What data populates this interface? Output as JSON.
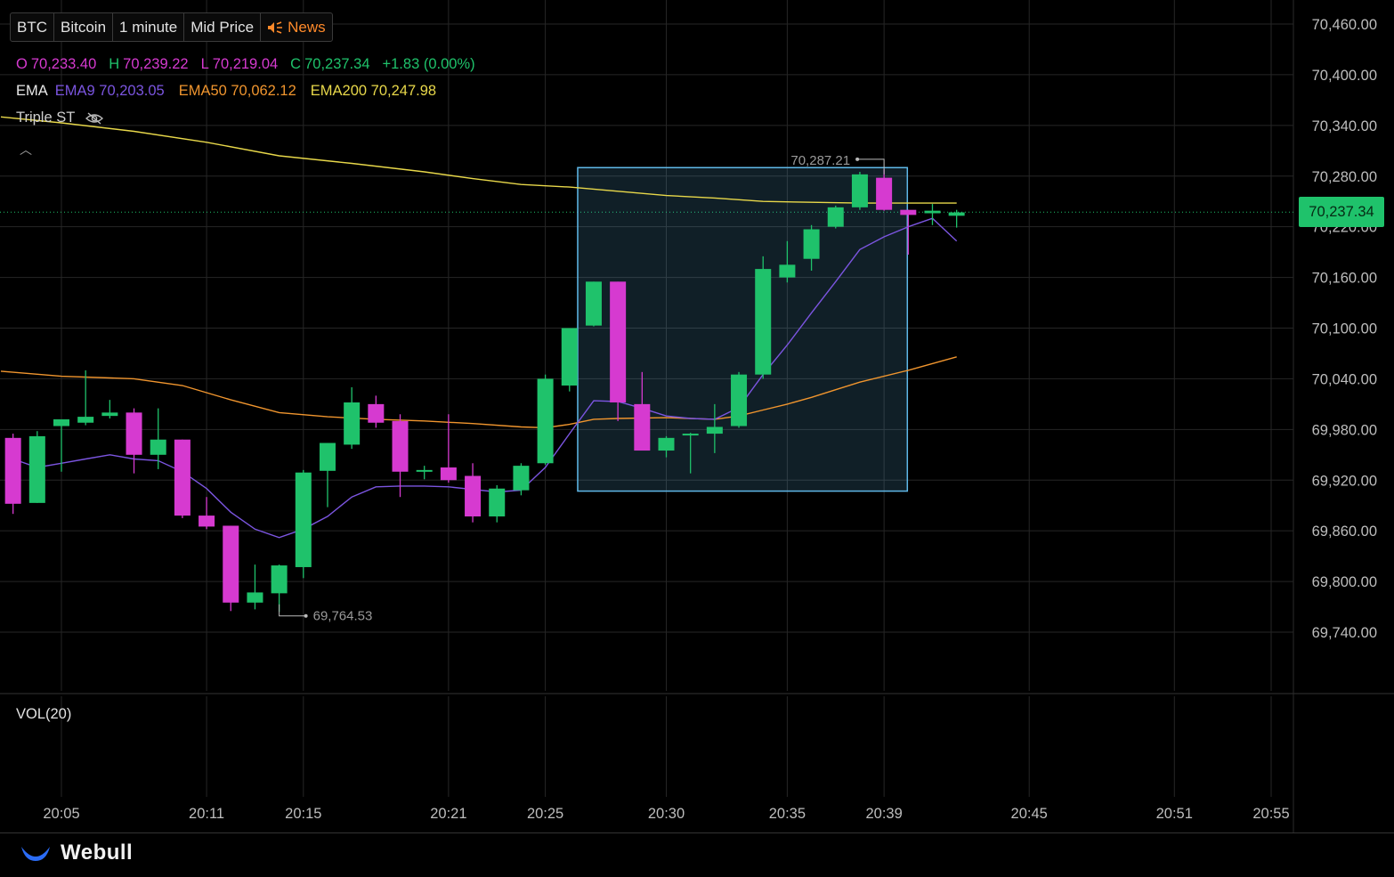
{
  "toolbar": {
    "symbol": "BTC",
    "name": "Bitcoin",
    "interval": "1 minute",
    "price_type": "Mid Price",
    "news": "News"
  },
  "ohlc": {
    "o_label": "O",
    "o_value": "70,233.40",
    "h_label": "H",
    "h_value": "70,239.22",
    "l_label": "L",
    "l_value": "70,219.04",
    "c_label": "C",
    "c_value": "70,237.34",
    "change": "+1.83 (0.00%)"
  },
  "ema": {
    "label": "EMA",
    "ema9": "EMA9 70,203.05",
    "ema50": "EMA50 70,062.12",
    "ema200": "EMA200 70,247.98"
  },
  "indicator": {
    "label": "Triple ST"
  },
  "volume": {
    "label": "VOL(20)"
  },
  "brand": {
    "name": "Webull"
  },
  "colors": {
    "up": "#1fc26b",
    "down": "#d63ad0",
    "ema9": "#7b55e0",
    "ema50": "#f0952e",
    "ema200": "#e8d84a",
    "box": "#5fb8e8",
    "grid": "#262626",
    "text": "#bdbdbd"
  },
  "chart_data": {
    "type": "candlestick",
    "y_ticks": [
      "70,460.00",
      "70,400.00",
      "70,340.00",
      "70,280.00",
      "70,220.00",
      "70,160.00",
      "70,100.00",
      "70,040.00",
      "69,980.00",
      "69,920.00",
      "69,860.00",
      "69,800.00",
      "69,740.00"
    ],
    "ylim": [
      69690,
      70490
    ],
    "x_ticks": [
      "20:05",
      "20:11",
      "20:15",
      "20:21",
      "20:25",
      "20:30",
      "20:35",
      "20:39",
      "20:45",
      "20:51",
      "20:55"
    ],
    "x_tick_minutes": [
      5,
      11,
      15,
      21,
      25,
      30,
      35,
      39,
      45,
      51,
      55
    ],
    "xlim_minutes": [
      2.5,
      58
    ],
    "last_price": "70,237.34",
    "candles": [
      {
        "t": 3.0,
        "o": 69970,
        "h": 69975,
        "l": 69880,
        "c": 69892
      },
      {
        "t": 4.0,
        "o": 69893,
        "h": 69978,
        "l": 69893,
        "c": 69972
      },
      {
        "t": 5.0,
        "o": 69984,
        "h": 69990,
        "l": 69930,
        "c": 69992
      },
      {
        "t": 6.0,
        "o": 69988,
        "h": 70050,
        "l": 69985,
        "c": 69995
      },
      {
        "t": 7.0,
        "o": 69996,
        "h": 70015,
        "l": 69993,
        "c": 70000
      },
      {
        "t": 8.0,
        "o": 70000,
        "h": 70005,
        "l": 69928,
        "c": 69950
      },
      {
        "t": 9.0,
        "o": 69950,
        "h": 70005,
        "l": 69933,
        "c": 69968
      },
      {
        "t": 10.0,
        "o": 69968,
        "h": 69968,
        "l": 69875,
        "c": 69878
      },
      {
        "t": 11.0,
        "o": 69878,
        "h": 69900,
        "l": 69862,
        "c": 69865
      },
      {
        "t": 12.0,
        "o": 69866,
        "h": 69866,
        "l": 69765,
        "c": 69775
      },
      {
        "t": 13.0,
        "o": 69775,
        "h": 69820,
        "l": 69767,
        "c": 69787
      },
      {
        "t": 14.0,
        "o": 69786,
        "h": 69820,
        "l": 69764,
        "c": 69819
      },
      {
        "t": 15.0,
        "o": 69817,
        "h": 69932,
        "l": 69804,
        "c": 69929
      },
      {
        "t": 16.0,
        "o": 69931,
        "h": 69964,
        "l": 69888,
        "c": 69964
      },
      {
        "t": 17.0,
        "o": 69962,
        "h": 70030,
        "l": 69957,
        "c": 70012
      },
      {
        "t": 18.0,
        "o": 70010,
        "h": 70020,
        "l": 69982,
        "c": 69988
      },
      {
        "t": 19.0,
        "o": 69990,
        "h": 69998,
        "l": 69900,
        "c": 69930
      },
      {
        "t": 20.0,
        "o": 69930,
        "h": 69937,
        "l": 69921,
        "c": 69932
      },
      {
        "t": 21.0,
        "o": 69935,
        "h": 69998,
        "l": 69917,
        "c": 69920
      },
      {
        "t": 22.0,
        "o": 69925,
        "h": 69940,
        "l": 69870,
        "c": 69877
      },
      {
        "t": 23.0,
        "o": 69877,
        "h": 69914,
        "l": 69870,
        "c": 69910
      },
      {
        "t": 24.0,
        "o": 69908,
        "h": 69940,
        "l": 69902,
        "c": 69937
      },
      {
        "t": 25.0,
        "o": 69940,
        "h": 70045,
        "l": 69938,
        "c": 70040
      },
      {
        "t": 26.0,
        "o": 70032,
        "h": 70100,
        "l": 70025,
        "c": 70100
      },
      {
        "t": 27.0,
        "o": 70103,
        "h": 70155,
        "l": 70102,
        "c": 70155
      },
      {
        "t": 28.0,
        "o": 70155,
        "h": 70155,
        "l": 69990,
        "c": 70012
      },
      {
        "t": 29.0,
        "o": 70010,
        "h": 70048,
        "l": 69958,
        "c": 69955
      },
      {
        "t": 30.0,
        "o": 69955,
        "h": 69972,
        "l": 69947,
        "c": 69970
      },
      {
        "t": 31.0,
        "o": 69973,
        "h": 69976,
        "l": 69928,
        "c": 69975
      },
      {
        "t": 32.0,
        "o": 69975,
        "h": 70010,
        "l": 69952,
        "c": 69983
      },
      {
        "t": 33.0,
        "o": 69984,
        "h": 70048,
        "l": 69982,
        "c": 70045
      },
      {
        "t": 34.0,
        "o": 70045,
        "h": 70185,
        "l": 70040,
        "c": 70170
      },
      {
        "t": 35.0,
        "o": 70160,
        "h": 70203,
        "l": 70154,
        "c": 70175
      },
      {
        "t": 36.0,
        "o": 70182,
        "h": 70222,
        "l": 70168,
        "c": 70217
      },
      {
        "t": 37.0,
        "o": 70220,
        "h": 70245,
        "l": 70218,
        "c": 70243
      },
      {
        "t": 38.0,
        "o": 70243,
        "h": 70285,
        "l": 70240,
        "c": 70282
      },
      {
        "t": 39.0,
        "o": 70278,
        "h": 70288,
        "l": 70239,
        "c": 70240
      },
      {
        "t": 40.0,
        "o": 70240,
        "h": 70240,
        "l": 70187,
        "c": 70234
      },
      {
        "t": 41.0,
        "o": 70236,
        "h": 70247,
        "l": 70222,
        "c": 70239
      },
      {
        "t": 42.0,
        "o": 70233,
        "h": 70240,
        "l": 70219,
        "c": 70237
      }
    ],
    "ema9": [
      [
        3,
        69945
      ],
      [
        4,
        69935
      ],
      [
        5,
        69940
      ],
      [
        6,
        69945
      ],
      [
        7,
        69950
      ],
      [
        8,
        69945
      ],
      [
        9,
        69943
      ],
      [
        10,
        69930
      ],
      [
        11,
        69910
      ],
      [
        12,
        69882
      ],
      [
        13,
        69862
      ],
      [
        14,
        69852
      ],
      [
        15,
        69862
      ],
      [
        16,
        69877
      ],
      [
        17,
        69900
      ],
      [
        18,
        69912
      ],
      [
        19,
        69913
      ],
      [
        20,
        69913
      ],
      [
        21,
        69912
      ],
      [
        22,
        69909
      ],
      [
        23,
        69906
      ],
      [
        24,
        69908
      ],
      [
        25,
        69935
      ],
      [
        26,
        69975
      ],
      [
        27,
        70014
      ],
      [
        28,
        70013
      ],
      [
        29,
        70005
      ],
      [
        30,
        69996
      ],
      [
        31,
        69993
      ],
      [
        32,
        69992
      ],
      [
        33,
        70006
      ],
      [
        34,
        70045
      ],
      [
        35,
        70080
      ],
      [
        36,
        70118
      ],
      [
        37,
        70155
      ],
      [
        38,
        70193
      ],
      [
        39,
        70208
      ],
      [
        40,
        70220
      ],
      [
        41,
        70230
      ],
      [
        42,
        70203
      ]
    ],
    "ema50": [
      [
        2.5,
        70049
      ],
      [
        5,
        70043
      ],
      [
        8,
        70040
      ],
      [
        10,
        70032
      ],
      [
        12,
        70015
      ],
      [
        14,
        70000
      ],
      [
        16,
        69995
      ],
      [
        18,
        69992
      ],
      [
        20,
        69990
      ],
      [
        22,
        69987
      ],
      [
        24,
        69983
      ],
      [
        25,
        69982
      ],
      [
        26,
        69986
      ],
      [
        27,
        69992
      ],
      [
        28,
        69993
      ],
      [
        30,
        69994
      ],
      [
        31,
        69993
      ],
      [
        32,
        69992
      ],
      [
        33,
        69996
      ],
      [
        34,
        70003
      ],
      [
        35,
        70010
      ],
      [
        36,
        70018
      ],
      [
        37,
        70027
      ],
      [
        38,
        70036
      ],
      [
        40,
        70050
      ],
      [
        42,
        70066
      ]
    ],
    "ema200": [
      [
        2.5,
        70350
      ],
      [
        5,
        70343
      ],
      [
        8,
        70333
      ],
      [
        11,
        70320
      ],
      [
        14,
        70304
      ],
      [
        17,
        70295
      ],
      [
        20,
        70285
      ],
      [
        22,
        70277
      ],
      [
        24,
        70270
      ],
      [
        26,
        70267
      ],
      [
        28,
        70262
      ],
      [
        30,
        70257
      ],
      [
        32,
        70254
      ],
      [
        34,
        70250
      ],
      [
        36,
        70249
      ],
      [
        38,
        70248
      ],
      [
        40,
        70248
      ],
      [
        42,
        70248
      ]
    ],
    "high_marker": {
      "label": "70,287.21",
      "t": 39,
      "price": 70287.21
    },
    "low_marker": {
      "label": "69,764.53",
      "t": 14,
      "price": 69764.53
    },
    "selection_box": {
      "t_start": 27,
      "t_end": 40,
      "price_top": 70290,
      "price_bottom": 69907
    },
    "grid": true
  }
}
